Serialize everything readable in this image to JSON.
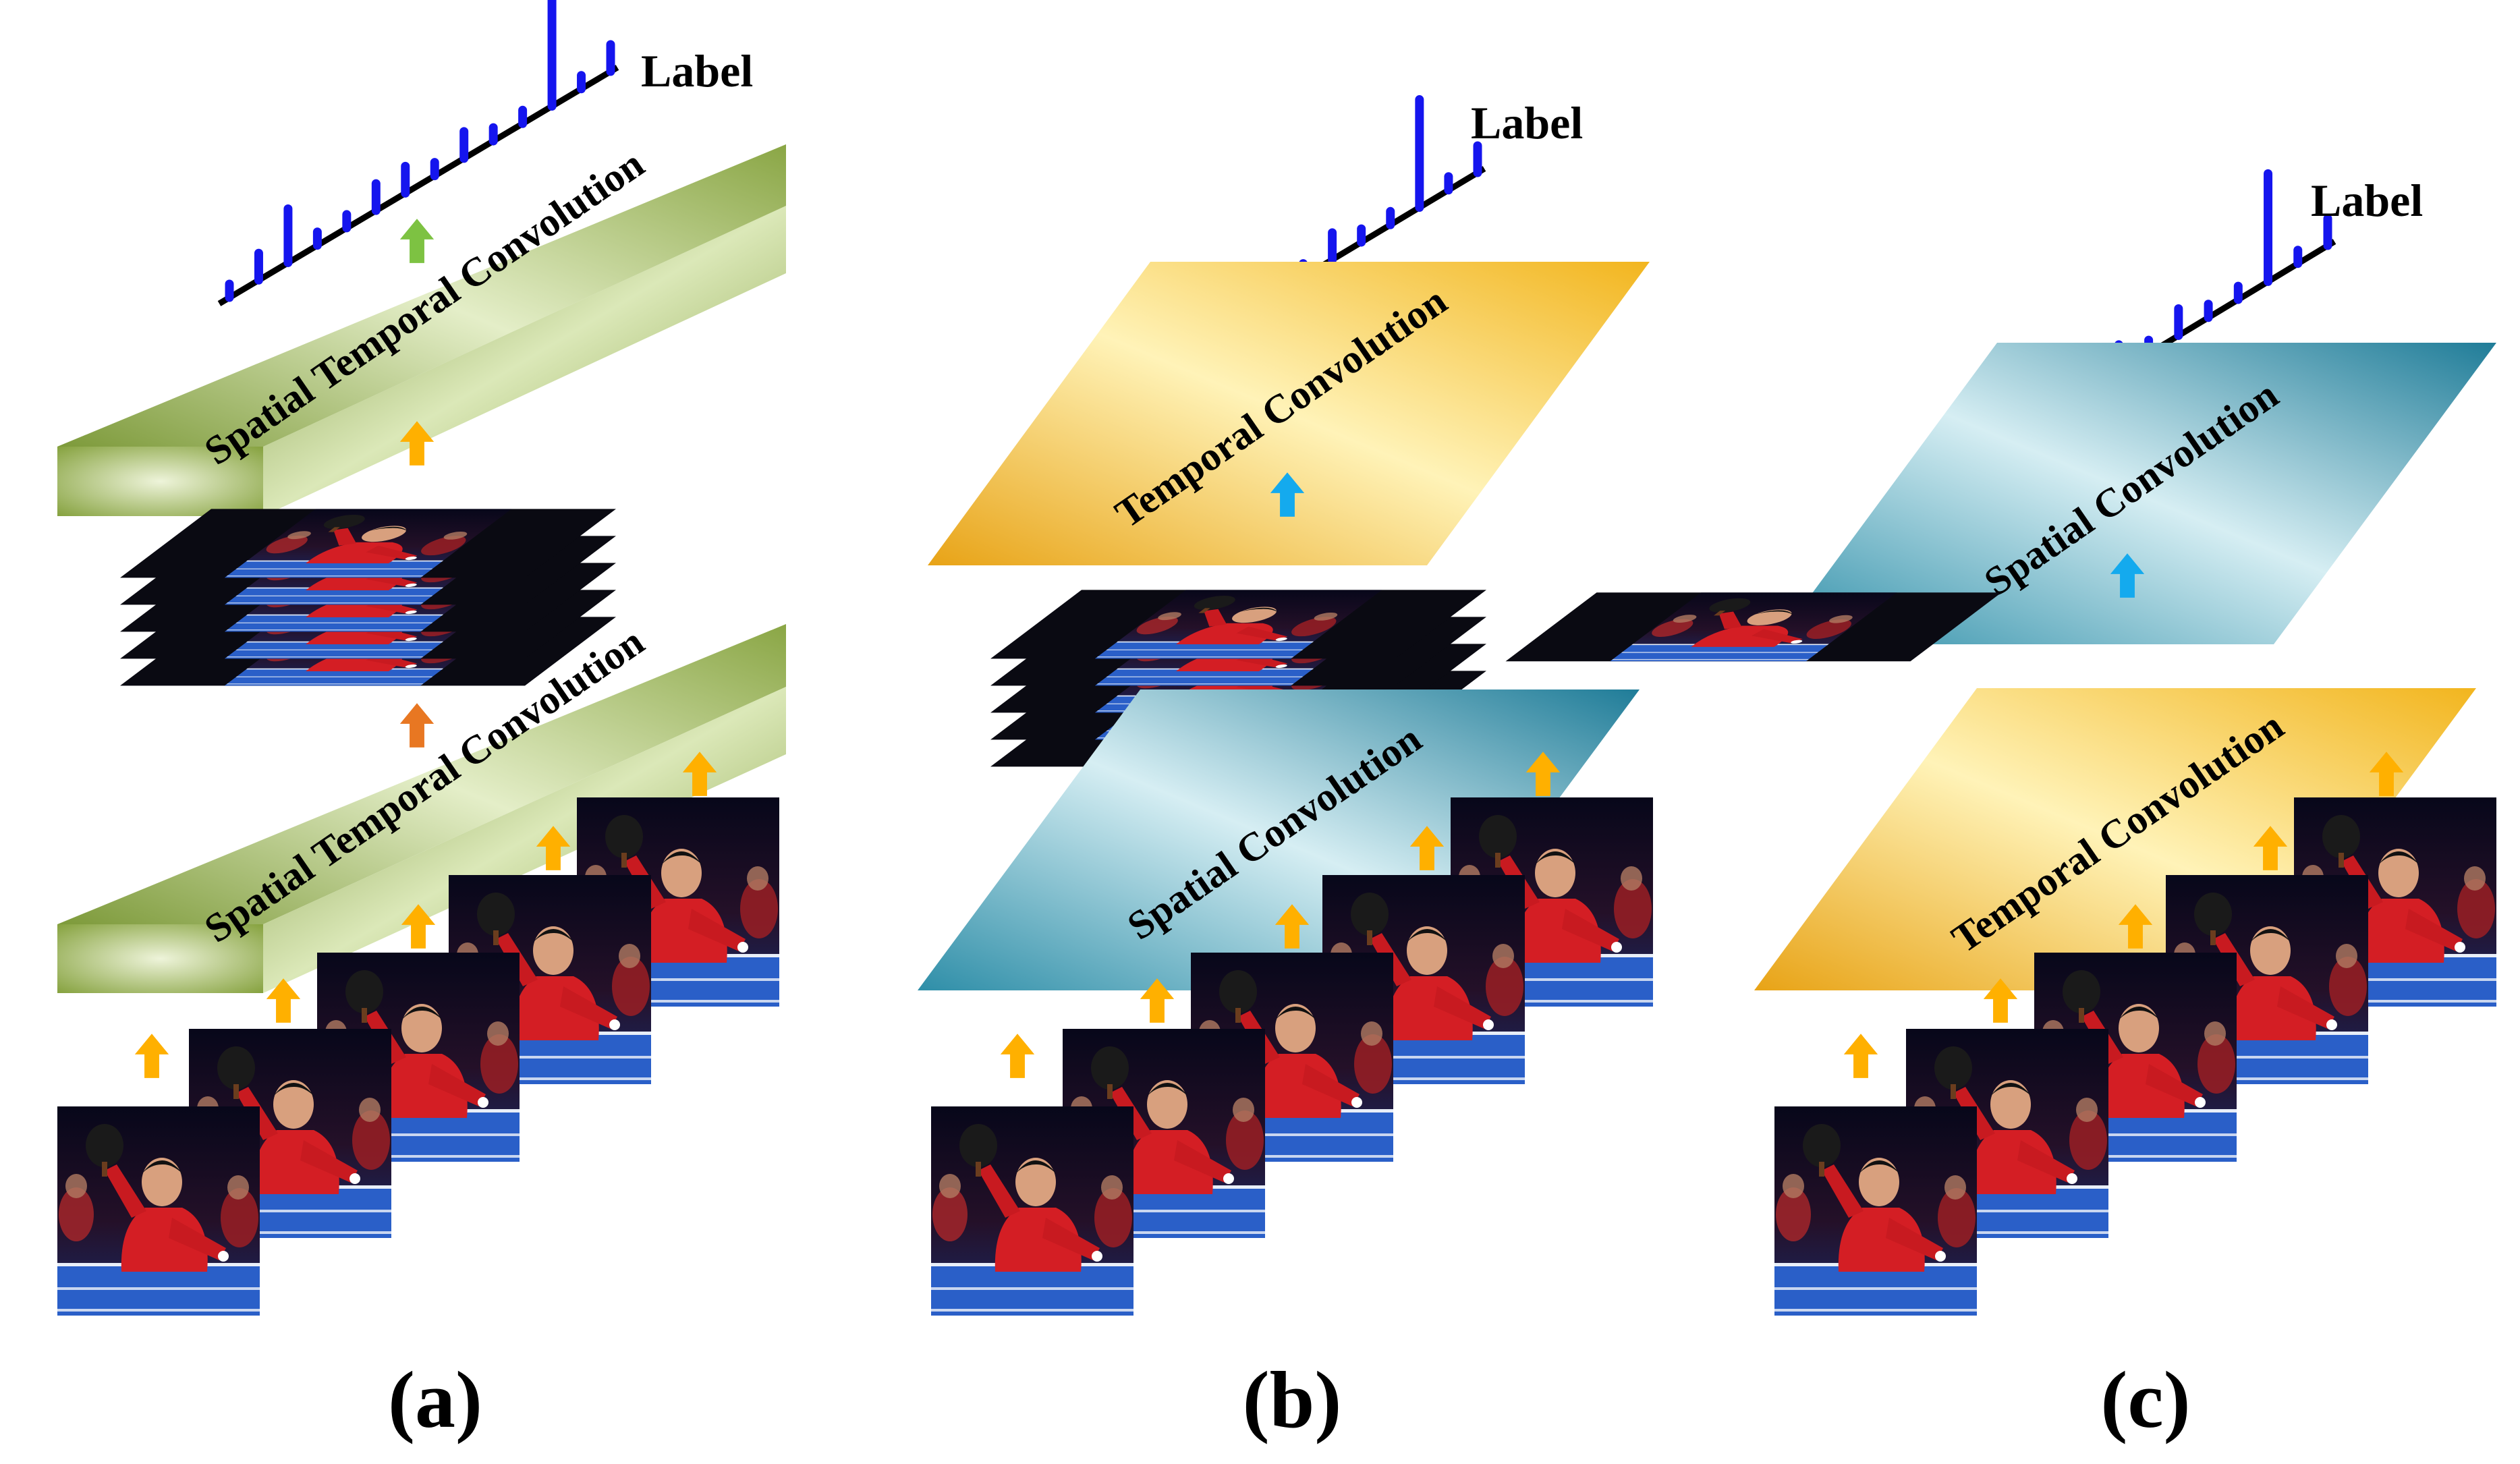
{
  "panels": [
    {
      "caption": "(a)",
      "label_text": "Label",
      "layers": [
        {
          "text": "Spatial Temporal Convolution",
          "kind": "spatial-temporal",
          "color": "#9db85a"
        },
        {
          "text": "Spatial Temporal Convolution",
          "kind": "spatial-temporal",
          "color": "#9db85a"
        }
      ],
      "arrow_colors": {
        "top": "#7dc242",
        "middle": "#ffb000",
        "lower": "#e87722",
        "frames": "#ffb000"
      }
    },
    {
      "caption": "(b)",
      "label_text": "Label",
      "layers": [
        {
          "text": "Temporal Convolution",
          "kind": "temporal",
          "color": "#f2b41c"
        },
        {
          "text": "Spatial Convolution",
          "kind": "spatial",
          "color": "#3aa0b8"
        }
      ],
      "arrow_colors": {
        "top": "#1515ee",
        "middle": "#14aaee",
        "lower": "#7a2fa8",
        "frames": "#ffb000"
      }
    },
    {
      "caption": "(c)",
      "label_text": "Label",
      "layers": [
        {
          "text": "Spatial Convolution",
          "kind": "spatial",
          "color": "#3aa0b8"
        },
        {
          "text": "Temporal Convolution",
          "kind": "temporal",
          "color": "#f2b41c"
        }
      ],
      "arrow_colors": {
        "top": "#1515ee",
        "middle": "#14aaee",
        "lower": "#7a2fa8",
        "frames": "#ffb000"
      }
    }
  ],
  "label_bars": {
    "heights": [
      1,
      2,
      4,
      1,
      1,
      2,
      2,
      1,
      2,
      1,
      1,
      8,
      1,
      2
    ],
    "peak_index": 11,
    "bar_color": "#1515ee",
    "axis_color": "#000000"
  },
  "frame_icon": "table-tennis-player-photo",
  "colors": {
    "photo_bg": "#0e0e1c",
    "shirt": "#d41e24",
    "table": "#2a5fc8"
  }
}
